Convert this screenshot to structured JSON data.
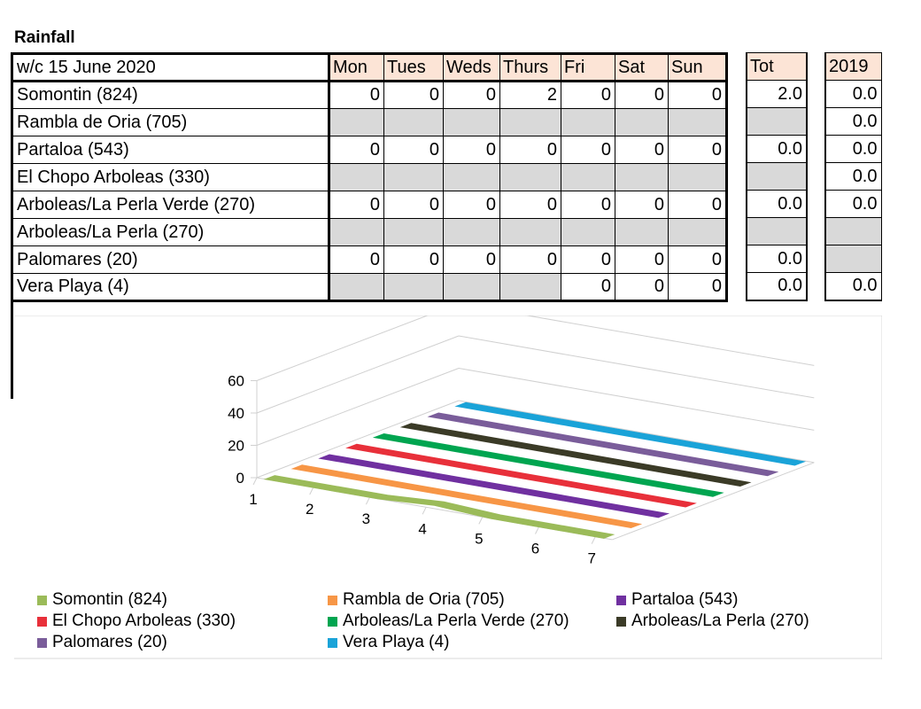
{
  "title": "Rainfall",
  "table": {
    "week_label": "w/c 15 June  2020",
    "days": [
      "Mon",
      "Tues",
      "Weds",
      "Thurs",
      "Fri",
      "Sat",
      "Sun"
    ],
    "tot_label": "Tot",
    "year_label": "2019",
    "rows": [
      {
        "name": "Somontin (824)",
        "days": [
          "0",
          "0",
          "0",
          "2",
          "0",
          "0",
          "0"
        ],
        "tot": "2.0",
        "y2019": "0.0"
      },
      {
        "name": "Rambla de Oria (705)",
        "days": [
          "",
          "",
          "",
          "",
          "",
          "",
          ""
        ],
        "tot": "",
        "y2019": "0.0"
      },
      {
        "name": "Partaloa (543)",
        "days": [
          "0",
          "0",
          "0",
          "0",
          "0",
          "0",
          "0"
        ],
        "tot": "0.0",
        "y2019": "0.0"
      },
      {
        "name": "El Chopo Arboleas (330)",
        "days": [
          "",
          "",
          "",
          "",
          "",
          "",
          ""
        ],
        "tot": "",
        "y2019": "0.0"
      },
      {
        "name": "Arboleas/La Perla Verde (270)",
        "days": [
          "0",
          "0",
          "0",
          "0",
          "0",
          "0",
          "0"
        ],
        "tot": "0.0",
        "y2019": "0.0"
      },
      {
        "name": "Arboleas/La Perla (270)",
        "days": [
          "",
          "",
          "",
          "",
          "",
          "",
          ""
        ],
        "tot": "",
        "y2019": ""
      },
      {
        "name": "Palomares (20)",
        "days": [
          "0",
          "0",
          "0",
          "0",
          "0",
          "0",
          "0"
        ],
        "tot": "0.0",
        "y2019": ""
      },
      {
        "name": "Vera Playa (4)",
        "days": [
          "",
          "",
          "",
          "",
          "0",
          "0",
          "0"
        ],
        "tot": "0.0",
        "y2019": "0.0"
      }
    ]
  },
  "chart_data": {
    "type": "line",
    "x": [
      1,
      2,
      3,
      4,
      5,
      6,
      7
    ],
    "ylim": [
      0,
      60
    ],
    "yticks": [
      "0",
      "20",
      "40",
      "60"
    ],
    "xticks": [
      "1",
      "2",
      "3",
      "4",
      "5",
      "6",
      "7"
    ],
    "grid": true,
    "legend_position": "bottom",
    "series": [
      {
        "name": "Somontin (824)",
        "values": [
          0,
          0,
          0,
          2,
          0,
          0,
          0
        ],
        "color": "#9bbb59"
      },
      {
        "name": "Rambla de Oria (705)",
        "values": [
          0,
          0,
          0,
          0,
          0,
          0,
          0
        ],
        "color": "#f79646"
      },
      {
        "name": "Partaloa (543)",
        "values": [
          0,
          0,
          0,
          0,
          0,
          0,
          0
        ],
        "color": "#7030a0"
      },
      {
        "name": "El Chopo Arboleas (330)",
        "values": [
          0,
          0,
          0,
          0,
          0,
          0,
          0
        ],
        "color": "#e8303a"
      },
      {
        "name": "Arboleas/La Perla Verde (270)",
        "values": [
          0,
          0,
          0,
          0,
          0,
          0,
          0
        ],
        "color": "#00a550"
      },
      {
        "name": "Arboleas/La Perla (270)",
        "values": [
          0,
          0,
          0,
          0,
          0,
          0,
          0
        ],
        "color": "#3b3b27"
      },
      {
        "name": "Palomares (20)",
        "values": [
          0,
          0,
          0,
          0,
          0,
          0,
          0
        ],
        "color": "#7a5d9a"
      },
      {
        "name": "Vera Playa (4)",
        "values": [
          0,
          0,
          0,
          0,
          0,
          0,
          0
        ],
        "color": "#1aa3d8"
      }
    ]
  }
}
